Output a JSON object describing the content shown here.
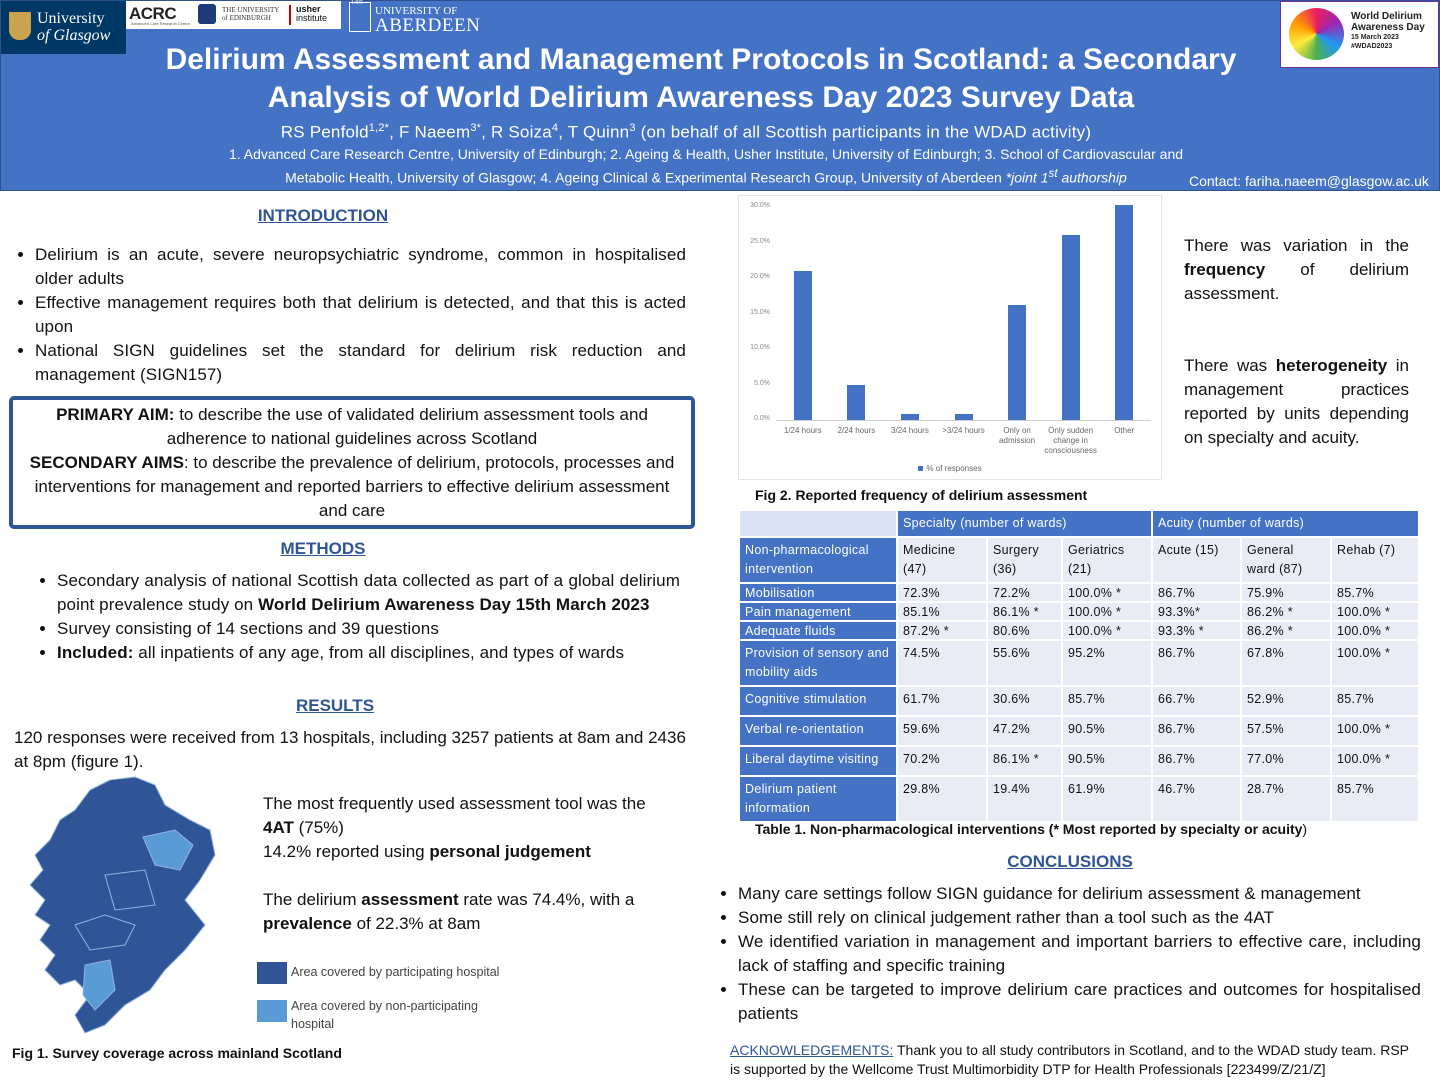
{
  "header": {
    "logos": {
      "glasgow": [
        "University",
        "of Glasgow"
      ],
      "acrc": "ACRC",
      "acrc_sub": "Advanced Care Research Centre",
      "edinburgh": [
        "THE UNIVERSITY",
        "of EDINBURGH"
      ],
      "usher": [
        "usher",
        "institute"
      ],
      "aberdeen_year": "1495",
      "aberdeen_top": "UNIVERSITY OF",
      "aberdeen": "ABERDEEN"
    },
    "badge": {
      "title": [
        "World Delirium",
        "Awareness Day"
      ],
      "date": "15 March 2023",
      "tag": "#WDAD2023"
    },
    "title": [
      "Delirium Assessment and Management Protocols in Scotland: a Secondary",
      "Analysis of World Delirium Awareness Day 2023 Survey Data"
    ],
    "authors": [
      {
        "name": "RS Penfold",
        "sup": "1,2*"
      },
      {
        "name": ",  F Naeem",
        "sup": "3*"
      },
      {
        "name": ", R Soiza",
        "sup": "4"
      },
      {
        "name": ", T Quinn",
        "sup": "3"
      }
    ],
    "authors_note": " (on behalf of all Scottish participants in the WDAD activity)",
    "affiliations": [
      "1. Advanced Care Research Centre, University of Edinburgh; 2. Ageing & Health, Usher Institute, University of Edinburgh; 3. School of Cardiovascular and Metabolic Health, University of Glasgow; 4. Ageing Clinical & Experimental Research Group, University of Aberdeen ",
      {
        "t": "*joint 1",
        "i": true
      },
      {
        "t": "st",
        "i": true,
        "sup": true
      },
      {
        "t": " authorship",
        "i": true
      }
    ],
    "contact": "Contact: fariha.naeem@glasgow.ac.uk"
  },
  "introduction": {
    "heading": "INTRODUCTION",
    "bullets": [
      "Delirium is an acute, severe neuropsychiatric syndrome, common in hospitalised older adults",
      "Effective management requires both that delirium is detected, and that this is acted upon",
      "National SIGN guidelines set the standard for delirium risk reduction and management (SIGN157)"
    ]
  },
  "aims": {
    "primary": [
      {
        "t": "PRIMARY AIM:",
        "b": true
      },
      " to describe the use of validated delirium assessment tools and adherence to national guidelines across Scotland"
    ],
    "secondary": [
      {
        "t": "SECONDARY AIMS",
        "b": true
      },
      ": to describe the prevalence of delirium, protocols, processes and interventions for management and reported barriers to effective delirium assessment and care"
    ]
  },
  "methods": {
    "heading": "METHODS",
    "bullets": [
      [
        "Secondary analysis of national Scottish data collected as part of a global delirium point prevalence study on ",
        {
          "t": "World Delirium Awareness Day 15th March 2023",
          "b": true
        }
      ],
      "Survey consisting of 14 sections and 39 questions",
      [
        {
          "t": "Included:",
          "b": true
        },
        " all inpatients of any age, from all disciplines, and types of wards"
      ]
    ]
  },
  "results": {
    "heading": "RESULTS",
    "summary": "120 responses were received from 13 hospitals, including 3257 patients at 8am and 2436 at 8pm (figure 1).",
    "findings": [
      [
        "The most frequently used assessment tool was the ",
        {
          "t": "4AT",
          "b": true
        },
        " (75%)"
      ],
      [
        "14.2% reported using ",
        {
          "t": "personal judgement",
          "b": true
        }
      ],
      [
        "The delirium ",
        {
          "t": "assessment",
          "b": true
        },
        " rate was 74.4%, with a ",
        {
          "t": "prevalence",
          "b": true
        },
        " of 22.3% at 8am"
      ]
    ],
    "map_legend": [
      "Area covered by participating hospital",
      "Area covered by non-participating hospital"
    ],
    "fig1_caption": "Fig 1. Survey coverage across mainland Scotland"
  },
  "chart_data": {
    "type": "bar",
    "categories": [
      "1/24 hours",
      "2/24 hours",
      "3/24 hours",
      ">3/24 hours",
      "Only on admission",
      "Only sudden change in consciousness",
      "Other"
    ],
    "series": [
      {
        "name": "% of responses",
        "color": "#4472c4",
        "values": [
          21.0,
          5.0,
          0.8,
          0.8,
          16.2,
          26.0,
          30.3
        ]
      }
    ],
    "ylim": [
      0,
      30
    ],
    "yticks": [
      {
        "value": 0,
        "label": "0.0%"
      },
      {
        "value": 5,
        "label": "5.0%"
      },
      {
        "value": 10,
        "label": "10.0%"
      },
      {
        "value": 15,
        "label": "15.0%"
      },
      {
        "value": 20,
        "label": "20.0%"
      },
      {
        "value": 25,
        "label": "25.0%"
      },
      {
        "value": 30,
        "label": "30.0%"
      }
    ],
    "grid": false,
    "legend": "bottom"
  },
  "figure2": {
    "caption": "Fig 2. Reported frequency of delirium assessment",
    "notes": [
      [
        "There was variation in the ",
        {
          "t": "frequency",
          "b": true
        },
        " of delirium assessment."
      ],
      [
        "There was ",
        {
          "t": "heterogeneity",
          "b": true
        },
        " in management practices reported by units depending on specialty and acuity."
      ]
    ]
  },
  "table": {
    "group_headers": [
      "Specialty (number of wards)",
      "Acuity (number of wards)"
    ],
    "columns": [
      "Non-pharmacological intervention",
      "Medicine (47)",
      "Surgery (36)",
      "Geriatrics (21)",
      "Acute (15)",
      "General ward (87)",
      "Rehab (7)"
    ],
    "rows": [
      [
        "Mobilisation",
        "72.3%",
        "72.2%",
        "100.0% *",
        "86.7%",
        "75.9%",
        "85.7%"
      ],
      [
        "Pain management",
        "85.1%",
        "86.1% *",
        "100.0% *",
        "93.3%*",
        "86.2% *",
        "100.0% *"
      ],
      [
        "Adequate fluids",
        "87.2% *",
        "80.6%",
        "100.0% *",
        "93.3% *",
        "86.2% *",
        "100.0% *"
      ],
      [
        "Provision of sensory and mobility aids",
        "74.5%",
        "55.6%",
        "95.2%",
        "86.7%",
        "67.8%",
        "100.0% *"
      ],
      [
        "Cognitive stimulation",
        "61.7%",
        "30.6%",
        "85.7%",
        "66.7%",
        "52.9%",
        "85.7%"
      ],
      [
        "Verbal re-orientation",
        "59.6%",
        "47.2%",
        "90.5%",
        "86.7%",
        "57.5%",
        "100.0% *"
      ],
      [
        "Liberal daytime visiting",
        "70.2%",
        "86.1% *",
        "90.5%",
        "86.7%",
        "77.0%",
        "100.0% *"
      ],
      [
        "Delirium patient information",
        "29.8%",
        "19.4%",
        "61.9%",
        "46.7%",
        "28.7%",
        "85.7%"
      ]
    ],
    "caption": [
      {
        "t": "Table 1. Non-pharmacological interventions  (* Most reported by specialty or acuity",
        "b": true
      },
      ")"
    ]
  },
  "conclusions": {
    "heading": "CONCLUSIONS",
    "bullets": [
      "Many care settings follow  SIGN guidance for delirium assessment & management",
      "Some still rely on clinical judgement rather than a tool such as the 4AT",
      "We identified variation in management and important barriers to effective care, including lack of staffing and specific training",
      "These can be targeted to improve delirium care practices and outcomes for hospitalised patients"
    ]
  },
  "acknowledgements": [
    {
      "t": "ACKNOWLEDGEMENTS:",
      "u": true
    },
    " Thank you to all study contributors in Scotland, and to the WDAD study team. RSP is supported by the Wellcome Trust Multimorbidity DTP for Health Professionals [223499/Z/21/Z]"
  ]
}
